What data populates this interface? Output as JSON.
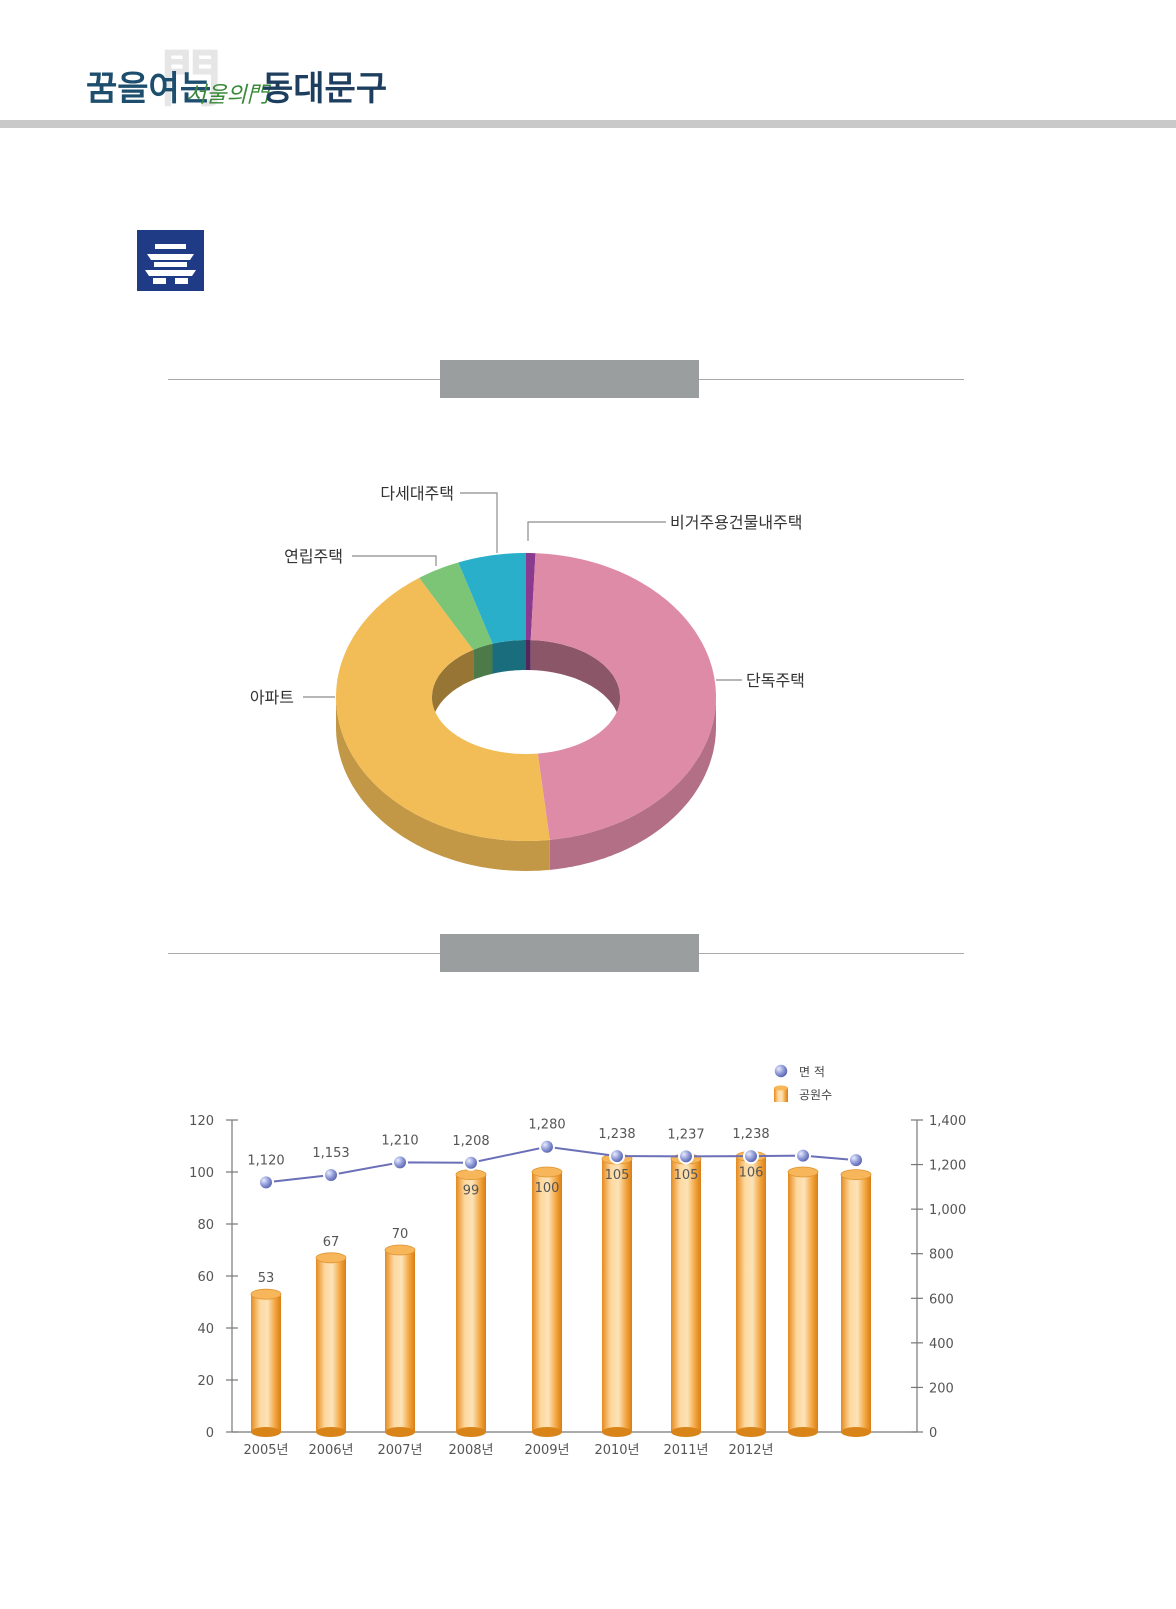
{
  "header": {
    "logo_text_1": "꿈을여는",
    "logo_text_2": "서울의門",
    "logo_text_3": "동대문구"
  },
  "chart_data": [
    {
      "type": "pie",
      "style": "3d-donut",
      "title": "",
      "slices": [
        {
          "label": "비거주용건물내주택",
          "value": 0.8,
          "color": "#8a3b8f"
        },
        {
          "label": "단독주택",
          "value": 47.2,
          "color": "#de8ba7"
        },
        {
          "label": "아파트",
          "value": 42.5,
          "color": "#f2bd56"
        },
        {
          "label": "연립주택",
          "value": 3.7,
          "color": "#7cc576"
        },
        {
          "label": "다세대주택",
          "value": 5.8,
          "color": "#2aafca"
        }
      ]
    },
    {
      "type": "bar",
      "style": "3d-cylinder-with-line",
      "title": "",
      "categories": [
        "2005년",
        "2006년",
        "2007년",
        "2008년",
        "2009년",
        "2010년",
        "2011년",
        "2012년",
        "",
        ""
      ],
      "legend": {
        "position": "top-right",
        "entries": [
          "면 적",
          "공원수"
        ]
      },
      "series": [
        {
          "name": "공원수",
          "type": "bar",
          "axis": "left",
          "values": [
            53,
            67,
            70,
            99,
            100,
            105,
            105,
            106,
            100,
            99
          ],
          "labels": [
            "53",
            "67",
            "70",
            "99",
            "100",
            "105",
            "105",
            "106",
            "",
            ""
          ],
          "color": "#f0a035"
        },
        {
          "name": "면 적",
          "type": "line",
          "axis": "right",
          "values": [
            1120,
            1153,
            1210,
            1208,
            1280,
            1238,
            1237,
            1238,
            1240,
            1220
          ],
          "labels": [
            "1,120",
            "1,153",
            "1,210",
            "1,208",
            "1,280",
            "1,238",
            "1,237",
            "1,238",
            "",
            ""
          ],
          "color": "#6a6fb8"
        }
      ],
      "y_left": {
        "range": [
          0,
          120
        ],
        "ticks": [
          "0",
          "20",
          "40",
          "60",
          "80",
          "100",
          "120"
        ]
      },
      "y_right": {
        "range": [
          0,
          1400
        ],
        "ticks": [
          "0",
          "200",
          "400",
          "600",
          "800",
          "1,000",
          "1,200",
          "1,400"
        ]
      }
    }
  ]
}
